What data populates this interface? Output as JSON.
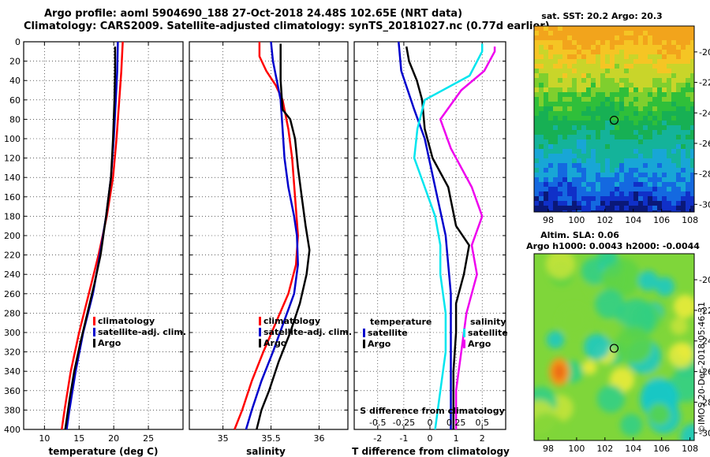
{
  "title": {
    "line1": "Argo profile: aoml 5904690_188 27-Oct-2018 24.48S 102.65E (NRT data)",
    "line2": "Climatology: CARS2009. Satellite-adjusted climatology: synTS_20181027.nc (0.77d earlier)"
  },
  "colors": {
    "climatology": "#ff0000",
    "satellite": "#0000cc",
    "argo": "#000000",
    "salinity_sat": "#00e5ee",
    "salinity_argo": "#ee00ee"
  },
  "depth_axis": {
    "ticks": [
      0,
      20,
      40,
      60,
      80,
      100,
      120,
      140,
      160,
      180,
      200,
      220,
      240,
      260,
      280,
      300,
      320,
      340,
      360,
      380,
      400
    ]
  },
  "chart_data": [
    {
      "type": "line",
      "id": "temperature",
      "xlabel": "temperature (deg C)",
      "ylabel": "depth",
      "xlim": [
        7,
        30
      ],
      "ylim": [
        400,
        0
      ],
      "xticks": [
        10,
        15,
        20,
        25
      ],
      "legend": [
        "climatology",
        "satellite-adj. clim.",
        "Argo"
      ],
      "series": [
        {
          "name": "climatology",
          "color": "#ff0000",
          "points": [
            [
              21.3,
              0
            ],
            [
              21.1,
              30
            ],
            [
              20.8,
              60
            ],
            [
              20.4,
              100
            ],
            [
              19.9,
              140
            ],
            [
              19.0,
              180
            ],
            [
              17.8,
              220
            ],
            [
              16.4,
              260
            ],
            [
              15.0,
              300
            ],
            [
              13.8,
              340
            ],
            [
              12.9,
              380
            ],
            [
              12.5,
              400
            ]
          ]
        },
        {
          "name": "satellite-adj. clim.",
          "color": "#0000cc",
          "points": [
            [
              20.6,
              0
            ],
            [
              20.5,
              30
            ],
            [
              20.3,
              60
            ],
            [
              20.0,
              100
            ],
            [
              19.6,
              140
            ],
            [
              18.9,
              180
            ],
            [
              18.0,
              220
            ],
            [
              17.0,
              260
            ],
            [
              15.6,
              300
            ],
            [
              14.5,
              340
            ],
            [
              13.6,
              380
            ],
            [
              13.2,
              400
            ]
          ]
        },
        {
          "name": "Argo",
          "color": "#000000",
          "points": [
            [
              20.2,
              5
            ],
            [
              20.2,
              30
            ],
            [
              20.1,
              60
            ],
            [
              19.9,
              100
            ],
            [
              19.6,
              140
            ],
            [
              18.9,
              180
            ],
            [
              18.1,
              220
            ],
            [
              17.2,
              250
            ],
            [
              16.2,
              280
            ],
            [
              15.2,
              310
            ],
            [
              14.3,
              340
            ],
            [
              13.6,
              370
            ],
            [
              13.0,
              400
            ]
          ]
        }
      ]
    },
    {
      "type": "line",
      "id": "salinity",
      "xlabel": "salinity",
      "ylabel": "depth",
      "xlim": [
        34.65,
        36.3
      ],
      "ylim": [
        400,
        0
      ],
      "xticks": [
        35,
        35.5,
        36
      ],
      "xtick_labels": [
        "35",
        "35.5",
        "36"
      ],
      "legend": [
        "climatology",
        "satellite-adj. clim.",
        "Argo"
      ],
      "series": [
        {
          "name": "climatology",
          "color": "#ff0000",
          "points": [
            [
              35.38,
              0
            ],
            [
              35.38,
              15
            ],
            [
              35.45,
              30
            ],
            [
              35.55,
              45
            ],
            [
              35.62,
              60
            ],
            [
              35.68,
              90
            ],
            [
              35.72,
              120
            ],
            [
              35.75,
              160
            ],
            [
              35.78,
              200
            ],
            [
              35.76,
              230
            ],
            [
              35.68,
              260
            ],
            [
              35.55,
              290
            ],
            [
              35.42,
              320
            ],
            [
              35.3,
              350
            ],
            [
              35.2,
              380
            ],
            [
              35.12,
              400
            ]
          ]
        },
        {
          "name": "satellite-adj. clim.",
          "color": "#0000cc",
          "points": [
            [
              35.5,
              0
            ],
            [
              35.52,
              20
            ],
            [
              35.56,
              40
            ],
            [
              35.6,
              60
            ],
            [
              35.62,
              90
            ],
            [
              35.64,
              120
            ],
            [
              35.68,
              150
            ],
            [
              35.74,
              180
            ],
            [
              35.77,
              200
            ],
            [
              35.78,
              230
            ],
            [
              35.74,
              260
            ],
            [
              35.63,
              290
            ],
            [
              35.52,
              320
            ],
            [
              35.4,
              350
            ],
            [
              35.3,
              380
            ],
            [
              35.24,
              400
            ]
          ]
        },
        {
          "name": "Argo",
          "color": "#000000",
          "points": [
            [
              35.6,
              2
            ],
            [
              35.6,
              40
            ],
            [
              35.62,
              70
            ],
            [
              35.7,
              80
            ],
            [
              35.75,
              100
            ],
            [
              35.78,
              130
            ],
            [
              35.82,
              160
            ],
            [
              35.86,
              190
            ],
            [
              35.9,
              215
            ],
            [
              35.87,
              240
            ],
            [
              35.8,
              270
            ],
            [
              35.7,
              300
            ],
            [
              35.58,
              330
            ],
            [
              35.48,
              360
            ],
            [
              35.4,
              380
            ],
            [
              35.35,
              400
            ]
          ]
        }
      ]
    },
    {
      "type": "line",
      "id": "difference",
      "xlabel": "T difference from climatology",
      "xlabel_top": "S difference from climatology",
      "xlim": [
        -2.9,
        2.9
      ],
      "ylim": [
        400,
        0
      ],
      "xticks": [
        -2,
        -1,
        0,
        1,
        2
      ],
      "s_ticks": [
        -0.5,
        -0.25,
        0,
        0.25,
        0.5
      ],
      "s_tick_labels": [
        "-0.5",
        "-0.25",
        "0",
        "0.25",
        "0.5"
      ],
      "legend_temperature": {
        "title": "temperature",
        "items": [
          "satellite",
          "Argo"
        ]
      },
      "legend_salinity": {
        "title": "salinity",
        "items": [
          "satellite",
          "Argo"
        ]
      },
      "series": [
        {
          "name": "T satellite",
          "color": "#0000cc",
          "points": [
            [
              -1.2,
              0
            ],
            [
              -1.1,
              30
            ],
            [
              -0.6,
              70
            ],
            [
              -0.2,
              100
            ],
            [
              0.2,
              150
            ],
            [
              0.6,
              200
            ],
            [
              0.8,
              260
            ],
            [
              0.8,
              300
            ],
            [
              0.8,
              340
            ],
            [
              0.8,
              380
            ],
            [
              0.8,
              400
            ]
          ]
        },
        {
          "name": "T Argo",
          "color": "#000000",
          "points": [
            [
              -0.9,
              5
            ],
            [
              -0.8,
              20
            ],
            [
              -0.5,
              40
            ],
            [
              -0.3,
              60
            ],
            [
              -0.2,
              90
            ],
            [
              0.1,
              120
            ],
            [
              0.7,
              150
            ],
            [
              1.0,
              190
            ],
            [
              1.5,
              210
            ],
            [
              1.3,
              240
            ],
            [
              1.0,
              270
            ],
            [
              1.0,
              300
            ],
            [
              0.9,
              340
            ],
            [
              0.9,
              370
            ],
            [
              0.9,
              400
            ]
          ]
        },
        {
          "name": "S satellite",
          "color": "#00e5ee",
          "points": [
            [
              0.5,
              2
            ],
            [
              0.5,
              10
            ],
            [
              0.38,
              35
            ],
            [
              -0.05,
              60
            ],
            [
              -0.12,
              90
            ],
            [
              -0.15,
              120
            ],
            [
              -0.05,
              150
            ],
            [
              0.05,
              180
            ],
            [
              0.1,
              210
            ],
            [
              0.1,
              240
            ],
            [
              0.15,
              280
            ],
            [
              0.15,
              320
            ],
            [
              0.1,
              360
            ],
            [
              0.05,
              400
            ]
          ]
        },
        {
          "name": "S Argo",
          "color": "#ee00ee",
          "points": [
            [
              0.62,
              5
            ],
            [
              0.62,
              10
            ],
            [
              0.52,
              30
            ],
            [
              0.3,
              50
            ],
            [
              0.1,
              80
            ],
            [
              0.2,
              110
            ],
            [
              0.4,
              150
            ],
            [
              0.5,
              180
            ],
            [
              0.4,
              210
            ],
            [
              0.45,
              240
            ],
            [
              0.35,
              280
            ],
            [
              0.3,
              320
            ],
            [
              0.25,
              360
            ],
            [
              0.25,
              400
            ]
          ]
        }
      ]
    },
    {
      "type": "heatmap",
      "id": "sst_map",
      "title": "sat. SST: 20.2 Argo: 20.3",
      "xlim": [
        97,
        108.3
      ],
      "ylim": [
        -30.5,
        -18.3
      ],
      "xticks": [
        98,
        100,
        102,
        104,
        106,
        108
      ],
      "yticks": [
        -20,
        -22,
        -24,
        -26,
        -28,
        -30
      ],
      "marker": [
        102.65,
        -24.48
      ]
    },
    {
      "type": "heatmap",
      "id": "sla_map",
      "title": "Altim. SLA: 0.06",
      "subtitle": "Argo h1000: 0.0043 h2000: -0.0044",
      "xlim": [
        97,
        108.3
      ],
      "ylim": [
        -30.5,
        -18.3
      ],
      "xticks": [
        98,
        100,
        102,
        104,
        106,
        108
      ],
      "yticks": [
        -20,
        -22,
        -24,
        -26,
        -28,
        -30
      ],
      "marker": [
        102.65,
        -24.48
      ]
    }
  ],
  "credit": "©IMOS 20-Dec-2018 05:46:31"
}
